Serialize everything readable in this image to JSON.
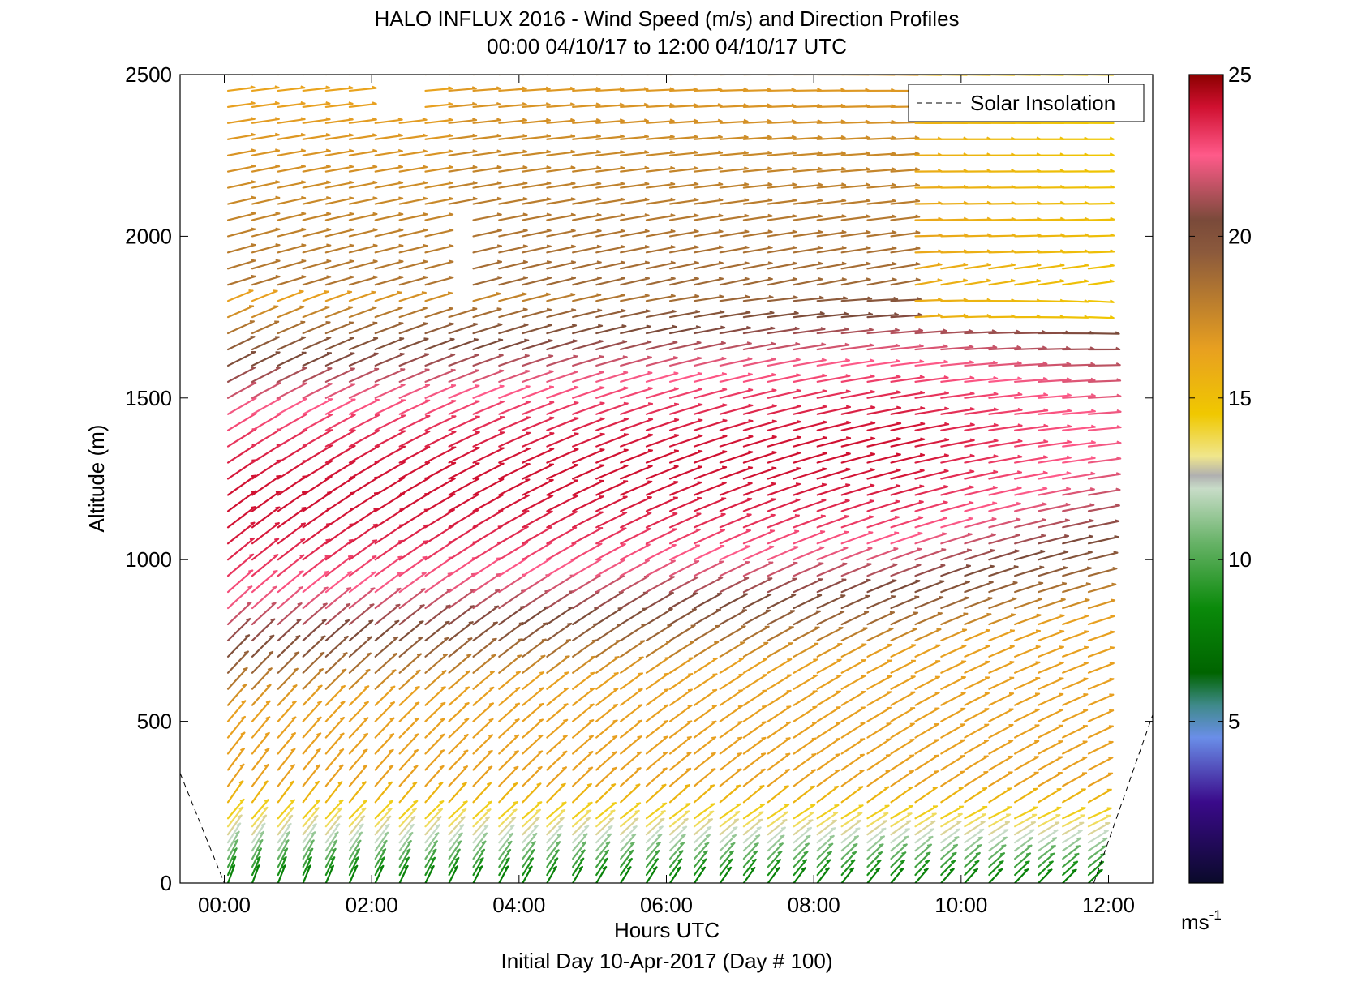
{
  "chart_data": {
    "type": "quiver",
    "title": "HALO INFLUX 2016 - Wind Speed (m/s) and Direction Profiles",
    "subtitle": "00:00 04/10/17 to 12:00 04/10/17  UTC",
    "xlabel": "Hours UTC",
    "xlabel2": "Initial Day 10-Apr-2017 (Day # 100)",
    "ylabel": "Altitude (m)",
    "xlim": [
      -0.6,
      12.6
    ],
    "ylim": [
      0,
      2500
    ],
    "xticks": [
      0,
      2,
      4,
      6,
      8,
      10,
      12
    ],
    "xtick_labels": [
      "00:00",
      "02:00",
      "04:00",
      "06:00",
      "08:00",
      "10:00",
      "12:00"
    ],
    "yticks": [
      0,
      500,
      1000,
      1500,
      2000,
      2500
    ],
    "ytick_labels": [
      "0",
      "500",
      "1000",
      "1500",
      "2000",
      "2500"
    ],
    "legend": {
      "label": "Solar Insolation",
      "placement": "top-right",
      "style": "dashed"
    },
    "colorbar": {
      "min": 0,
      "max": 25,
      "ticks": [
        5,
        10,
        15,
        20,
        25
      ],
      "tick_labels": [
        "5",
        "10",
        "15",
        "20",
        "25"
      ],
      "unit_label": "ms",
      "unit_exponent": "-1",
      "stops": [
        {
          "v": 0,
          "c": "#0a0a2a"
        },
        {
          "v": 2.5,
          "c": "#3a0a8a"
        },
        {
          "v": 4.5,
          "c": "#6a8ee8"
        },
        {
          "v": 5.5,
          "c": "#3f8a8a"
        },
        {
          "v": 6.5,
          "c": "#006400"
        },
        {
          "v": 8.5,
          "c": "#0a8a0a"
        },
        {
          "v": 10.5,
          "c": "#66b266"
        },
        {
          "v": 12.2,
          "c": "#c8dcc8"
        },
        {
          "v": 12.6,
          "c": "#b0b0b0"
        },
        {
          "v": 13.2,
          "c": "#f0e68c"
        },
        {
          "v": 14.5,
          "c": "#f0c800"
        },
        {
          "v": 16.5,
          "c": "#e8a020"
        },
        {
          "v": 19.5,
          "c": "#8c5a3c"
        },
        {
          "v": 20.5,
          "c": "#7a4a3a"
        },
        {
          "v": 22.5,
          "c": "#ff5a8a"
        },
        {
          "v": 24,
          "c": "#d01030"
        },
        {
          "v": 25,
          "c": "#8b0000"
        }
      ]
    },
    "barbs": {
      "times": [
        0.05,
        0.38,
        0.73,
        1.07,
        1.38,
        1.7,
        2.05,
        2.38,
        2.73,
        3.05,
        3.38,
        3.73,
        4.05,
        4.38,
        4.73,
        5.05,
        5.38,
        5.73,
        6.05,
        6.38,
        6.73,
        7.05,
        7.38,
        7.73,
        8.05,
        8.38,
        8.73,
        9.05,
        9.38,
        9.73,
        10.05,
        10.38,
        10.73,
        11.05,
        11.38,
        11.73
      ],
      "altitudes": [
        0,
        25,
        50,
        75,
        100,
        125,
        150,
        175,
        200,
        250,
        300,
        350,
        400,
        450,
        500,
        550,
        600,
        650,
        700,
        750,
        800,
        850,
        900,
        950,
        1000,
        1050,
        1100,
        1150,
        1200,
        1250,
        1300,
        1350,
        1400,
        1450,
        1500,
        1550,
        1600,
        1650,
        1700,
        1750,
        1800,
        1850,
        1900,
        1950,
        2000,
        2050,
        2100,
        2150,
        2200,
        2250,
        2300,
        2350,
        2400,
        2450,
        2500
      ],
      "gaps": [
        {
          "t0": 2.9,
          "t1": 3.15,
          "z0": 1800,
          "z1": 2050
        },
        {
          "t0": 2.0,
          "t1": 2.6,
          "z0": 2380,
          "z1": 2500
        }
      ]
    },
    "solar_insolation": {
      "left": {
        "x": [
          -0.6,
          0.0
        ],
        "y": [
          340,
          0
        ]
      },
      "right": {
        "x": [
          11.8,
          12.6
        ],
        "y": [
          0,
          520
        ]
      }
    }
  }
}
